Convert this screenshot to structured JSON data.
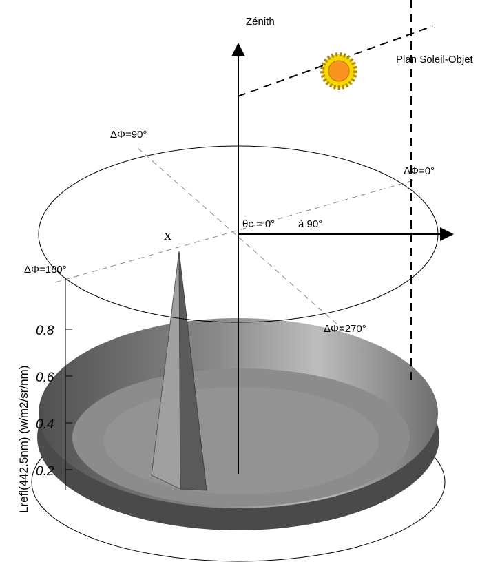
{
  "labels": {
    "zenith": "Zénith",
    "plane": "Plan Soleil-Objet",
    "phi_90": "ΔΦ=90°",
    "phi_0": "ΔΦ=0°",
    "phi_180": "ΔΦ=180°",
    "phi_270": "ΔΦ=270°",
    "theta_start": "θc = 0°",
    "theta_end": "à 90°",
    "marker": "x",
    "y_axis": "Lrefl(442.5nm) (w/m2/sr/nm)"
  },
  "yticks": [
    0.8,
    0.6,
    0.4,
    0.2
  ]
}
